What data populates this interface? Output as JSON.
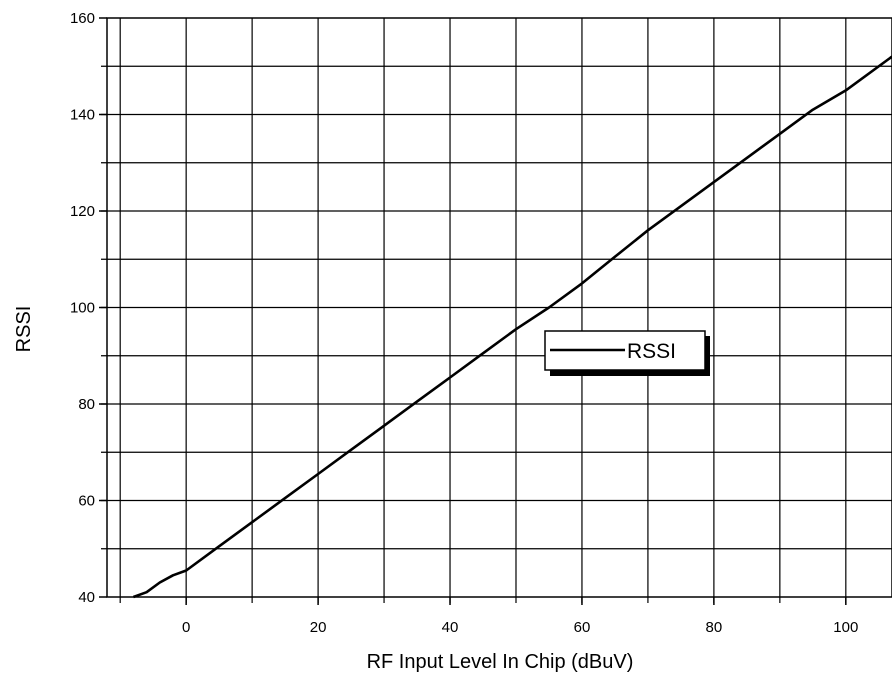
{
  "chart_data": {
    "type": "line",
    "title": "",
    "xlabel": "RF Input Level In Chip (dBuV)",
    "ylabel": "RSSI",
    "xlim": [
      -12,
      107
    ],
    "ylim": [
      40,
      160
    ],
    "xticks": [
      0,
      20,
      40,
      60,
      80,
      100
    ],
    "yticks": [
      40,
      60,
      80,
      100,
      120,
      140,
      160
    ],
    "grid": true,
    "legend": {
      "position": "center-right",
      "entries": [
        "RSSI"
      ]
    },
    "series": [
      {
        "name": "RSSI",
        "color": "#000000",
        "x": [
          -8,
          -6,
          -4,
          -2,
          0,
          5,
          10,
          15,
          20,
          25,
          30,
          35,
          40,
          45,
          50,
          55,
          60,
          65,
          70,
          75,
          80,
          85,
          90,
          95,
          100,
          107
        ],
        "y": [
          40,
          41,
          43,
          44.5,
          45.5,
          50.5,
          55.5,
          60.5,
          65.5,
          70.5,
          75.5,
          80.5,
          85.5,
          90.5,
          95.5,
          100,
          105,
          110.5,
          116,
          121,
          126,
          131,
          136,
          141,
          145,
          152
        ]
      }
    ]
  }
}
